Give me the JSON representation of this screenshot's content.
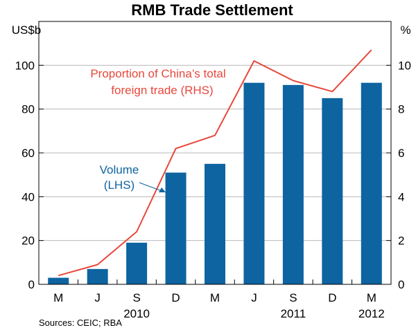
{
  "chart_data": {
    "type": "bar+line",
    "title": "RMB Trade Settlement",
    "left_unit": "US$b",
    "right_unit": "%",
    "categories": [
      "M",
      "J",
      "S",
      "D",
      "M",
      "J",
      "S",
      "D",
      "M"
    ],
    "year_labels": [
      {
        "label": "2010",
        "category_index": 2
      },
      {
        "label": "2011",
        "category_index": 6
      },
      {
        "label": "2012",
        "category_index": 8
      }
    ],
    "left_axis": {
      "min": 0,
      "max": 120,
      "ticks": [
        0,
        20,
        40,
        60,
        80,
        100
      ]
    },
    "right_axis": {
      "min": 0,
      "max": 12,
      "ticks": [
        0,
        2,
        4,
        6,
        8,
        10
      ]
    },
    "series": [
      {
        "name": "Volume (LHS)",
        "kind": "bar",
        "axis": "left",
        "color": "#0d64a0",
        "values": [
          3,
          7,
          19,
          51,
          55,
          92,
          91,
          85,
          92
        ]
      },
      {
        "name": "Proportion of China's total foreign trade (RHS)",
        "kind": "line",
        "axis": "right",
        "color": "#e8473b",
        "values": [
          0.4,
          0.9,
          2.4,
          6.2,
          6.8,
          10.2,
          9.3,
          8.8,
          10.7
        ]
      }
    ],
    "annotations": {
      "line_label": [
        "Proportion of China’s total",
        "foreign trade (RHS)"
      ],
      "bar_label": [
        "Volume",
        "(LHS)"
      ]
    },
    "source": "Sources: CEIC; RBA"
  }
}
